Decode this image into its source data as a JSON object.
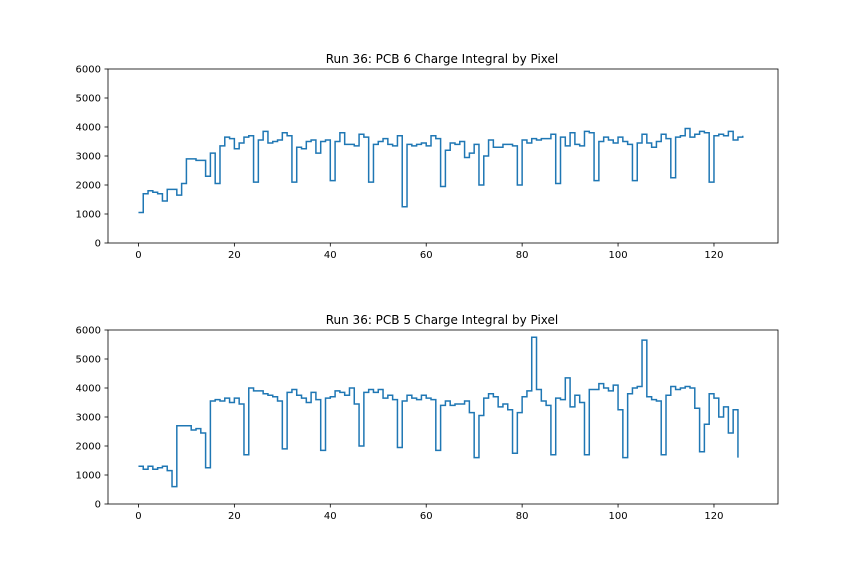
{
  "chart_data": [
    {
      "type": "line",
      "drawstyle": "steps-post",
      "title": "Run 36: PCB 6 Charge Integral by Pixel",
      "xlabel": "",
      "ylabel": "",
      "xlim": [
        -6.35,
        133.35
      ],
      "ylim": [
        0,
        6000
      ],
      "xticks": [
        0,
        20,
        40,
        60,
        80,
        100,
        120
      ],
      "yticks": [
        0,
        1000,
        2000,
        3000,
        4000,
        5000,
        6000
      ],
      "grid": false,
      "color": "#1f77b4",
      "x_start": 0,
      "values": [
        1050,
        1700,
        1800,
        1750,
        1700,
        1450,
        1850,
        1850,
        1650,
        2050,
        2900,
        2900,
        2850,
        2850,
        2300,
        3100,
        2050,
        3350,
        3650,
        3600,
        3250,
        3450,
        3650,
        3700,
        2100,
        3550,
        3850,
        3450,
        3500,
        3550,
        3800,
        3700,
        2100,
        3300,
        3250,
        3500,
        3550,
        3100,
        3500,
        3550,
        2150,
        3500,
        3800,
        3400,
        3400,
        3350,
        3750,
        3650,
        2100,
        3400,
        3500,
        3600,
        3400,
        3350,
        3700,
        1250,
        3400,
        3350,
        3400,
        3450,
        3350,
        3700,
        3600,
        1950,
        3200,
        3450,
        3400,
        3500,
        2950,
        3100,
        3400,
        2000,
        3000,
        3550,
        3300,
        3300,
        3400,
        3400,
        3350,
        2000,
        3550,
        3450,
        3600,
        3550,
        3600,
        3600,
        3750,
        2050,
        3650,
        3350,
        3800,
        3400,
        3350,
        3850,
        3800,
        2150,
        3500,
        3650,
        3550,
        3450,
        3650,
        3500,
        3400,
        2150,
        3450,
        3750,
        3450,
        3300,
        3500,
        3750,
        3600,
        2250,
        3650,
        3700,
        3950,
        3650,
        3750,
        3850,
        3800,
        2100,
        3700,
        3750,
        3700,
        3850,
        3550,
        3650,
        3700
      ]
    },
    {
      "type": "line",
      "drawstyle": "steps-post",
      "title": "Run 36: PCB 5 Charge Integral by Pixel",
      "xlabel": "",
      "ylabel": "",
      "xlim": [
        -6.35,
        133.35
      ],
      "ylim": [
        0,
        6000
      ],
      "xticks": [
        0,
        20,
        40,
        60,
        80,
        100,
        120
      ],
      "yticks": [
        0,
        1000,
        2000,
        3000,
        4000,
        5000,
        6000
      ],
      "grid": false,
      "color": "#1f77b4",
      "x_start": 0,
      "values": [
        1300,
        1200,
        1300,
        1200,
        1250,
        1300,
        1150,
        600,
        2700,
        2700,
        2700,
        2550,
        2600,
        2450,
        1250,
        3550,
        3600,
        3550,
        3650,
        3500,
        3650,
        3450,
        1700,
        4000,
        3900,
        3900,
        3800,
        3750,
        3700,
        3550,
        1900,
        3850,
        3950,
        3750,
        3650,
        3500,
        3850,
        3600,
        1850,
        3650,
        3700,
        3900,
        3850,
        3750,
        4000,
        3450,
        2000,
        3850,
        3950,
        3850,
        3950,
        3650,
        3750,
        3600,
        1950,
        3550,
        3750,
        3650,
        3600,
        3750,
        3650,
        3600,
        1850,
        3400,
        3550,
        3400,
        3450,
        3450,
        3550,
        3150,
        1600,
        3050,
        3650,
        3800,
        3700,
        3350,
        3450,
        3250,
        1750,
        3150,
        3700,
        3900,
        5750,
        3950,
        3550,
        3400,
        1700,
        3650,
        3600,
        4350,
        3350,
        3750,
        3500,
        1700,
        3950,
        3950,
        4150,
        4000,
        3900,
        4100,
        3250,
        1600,
        3800,
        4000,
        4050,
        5650,
        3700,
        3600,
        3550,
        1700,
        3750,
        4050,
        3950,
        4000,
        4050,
        4000,
        3300,
        1800,
        2750,
        3800,
        3650,
        3000,
        3350,
        2450,
        3250,
        1600
      ]
    }
  ]
}
